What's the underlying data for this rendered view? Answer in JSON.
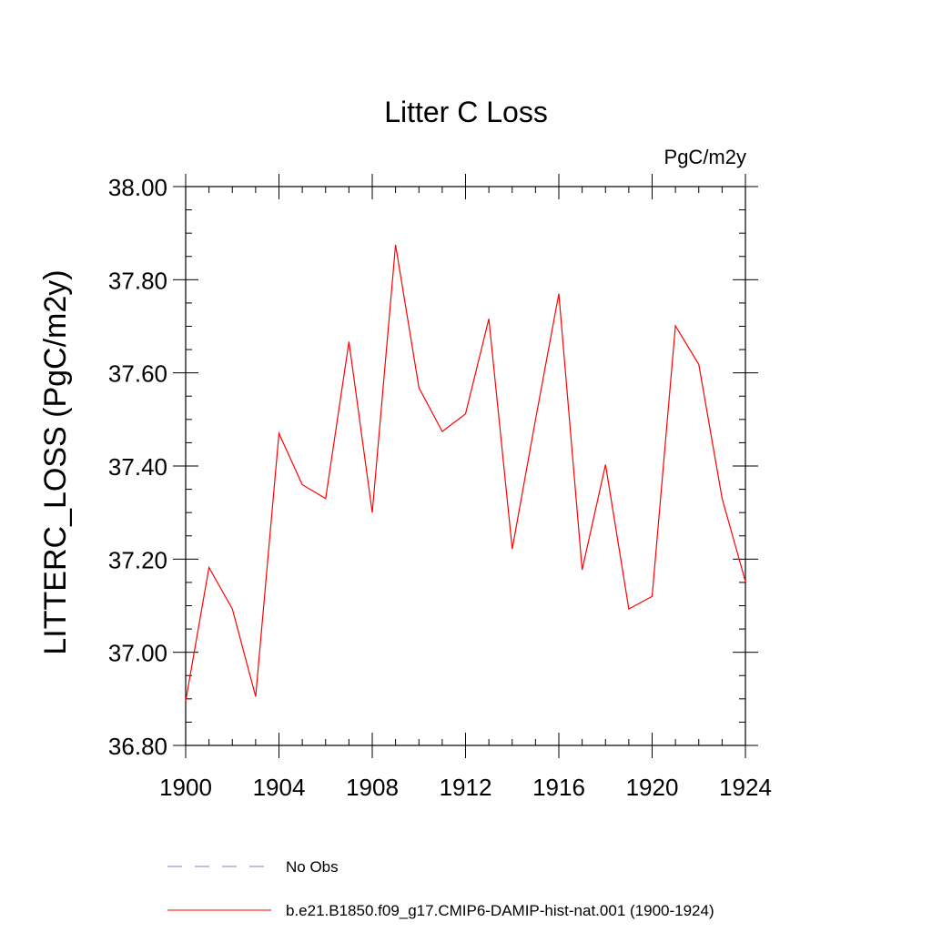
{
  "chart_data": {
    "type": "line",
    "title": "Litter C Loss",
    "units_label": "PgC/m2y",
    "xlabel": "",
    "ylabel": "LITTERC_LOSS  (PgC/m2y)",
    "xlim": [
      1900,
      1924
    ],
    "ylim": [
      36.8,
      38.0
    ],
    "x_ticks": [
      1900,
      1904,
      1908,
      1912,
      1916,
      1920,
      1924
    ],
    "x_tick_labels": [
      "1900",
      "1904",
      "1908",
      "1912",
      "1916",
      "1920",
      "1924"
    ],
    "y_ticks": [
      36.8,
      37.0,
      37.2,
      37.4,
      37.6,
      37.8,
      38.0
    ],
    "y_tick_labels": [
      "36.80",
      "37.00",
      "37.20",
      "37.40",
      "37.60",
      "37.80",
      "38.00"
    ],
    "grid": false,
    "legend_position": "bottom",
    "series": [
      {
        "name": "b.e21.B1850.f09_g17.CMIP6-DAMIP-hist-nat.001 (1900-1924)",
        "color": "#ff0000",
        "style": "solid",
        "x": [
          1900,
          1901,
          1902,
          1903,
          1904,
          1905,
          1906,
          1907,
          1908,
          1909,
          1910,
          1911,
          1912,
          1913,
          1914,
          1915,
          1916,
          1917,
          1918,
          1919,
          1920,
          1921,
          1922,
          1923,
          1924
        ],
        "y": [
          36.895,
          37.182,
          37.093,
          36.905,
          37.47,
          37.36,
          37.33,
          37.667,
          37.3,
          37.875,
          37.568,
          37.474,
          37.512,
          37.716,
          37.222,
          37.5,
          37.77,
          37.177,
          37.403,
          37.093,
          37.12,
          37.701,
          37.618,
          37.33,
          37.152
        ]
      }
    ],
    "legend": [
      {
        "label": "No Obs",
        "color": "#8080c0",
        "style": "dashed"
      },
      {
        "label": "b.e21.B1850.f09_g17.CMIP6-DAMIP-hist-nat.001 (1900-1924)",
        "color": "#ff0000",
        "style": "solid"
      }
    ]
  }
}
